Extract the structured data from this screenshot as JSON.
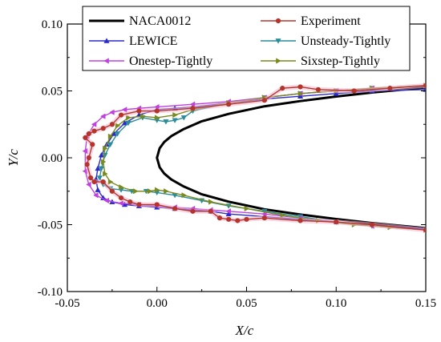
{
  "chart_data": {
    "type": "line",
    "xlabel": "X/c",
    "ylabel": "Y/c",
    "xlim": [
      -0.05,
      0.15
    ],
    "ylim": [
      -0.1,
      0.1
    ],
    "xticks": [
      "-0.05",
      "0.00",
      "0.05",
      "0.10",
      "0.15"
    ],
    "yticks": [
      "-0.10",
      "-0.05",
      "0.00",
      "0.05",
      "0.10"
    ],
    "grid": false,
    "legend_position": "top",
    "series": [
      {
        "name": "NACA0012",
        "color": "#000000",
        "marker": "none",
        "x": [
          0.15,
          0.12,
          0.1,
          0.08,
          0.06,
          0.04,
          0.025,
          0.015,
          0.008,
          0.004,
          0.0015,
          0.0,
          0.0015,
          0.004,
          0.008,
          0.015,
          0.025,
          0.04,
          0.06,
          0.08,
          0.1,
          0.12,
          0.15
        ],
        "y": [
          0.0526,
          0.0488,
          0.0458,
          0.0424,
          0.0385,
          0.0328,
          0.0273,
          0.0215,
          0.0162,
          0.0117,
          0.0071,
          0.0,
          -0.0071,
          -0.0117,
          -0.0162,
          -0.0215,
          -0.0273,
          -0.0328,
          -0.0385,
          -0.0424,
          -0.0458,
          -0.0488,
          -0.0526
        ]
      },
      {
        "name": "Experiment",
        "color": "#b5342b",
        "marker": "circle",
        "x": [
          0.15,
          0.13,
          0.11,
          0.09,
          0.08,
          0.07,
          0.06,
          0.04,
          0.02,
          0.0,
          -0.01,
          -0.02,
          -0.025,
          -0.03,
          -0.035,
          -0.038,
          -0.04,
          -0.036,
          -0.038,
          -0.039,
          -0.037,
          -0.035,
          -0.03,
          -0.025,
          -0.02,
          -0.015,
          -0.01,
          0.0,
          0.01,
          0.02,
          0.03,
          0.035,
          0.04,
          0.045,
          0.05,
          0.06,
          0.08,
          0.1,
          0.12,
          0.15
        ],
        "y": [
          0.054,
          0.052,
          0.05,
          0.051,
          0.053,
          0.052,
          0.043,
          0.04,
          0.037,
          0.035,
          0.035,
          0.032,
          0.025,
          0.022,
          0.02,
          0.018,
          0.015,
          0.01,
          0.0,
          -0.005,
          -0.015,
          -0.018,
          -0.018,
          -0.025,
          -0.03,
          -0.033,
          -0.035,
          -0.035,
          -0.038,
          -0.04,
          -0.04,
          -0.045,
          -0.046,
          -0.047,
          -0.046,
          -0.045,
          -0.047,
          -0.048,
          -0.05,
          -0.054
        ]
      },
      {
        "name": "LEWICE",
        "color": "#2b2bc8",
        "marker": "triangle-up",
        "x": [
          0.15,
          0.12,
          0.1,
          0.08,
          0.06,
          0.04,
          0.02,
          0.01,
          0.0,
          -0.01,
          -0.018,
          -0.024,
          -0.028,
          -0.031,
          -0.033,
          -0.034,
          -0.033,
          -0.03,
          -0.025,
          -0.018,
          -0.01,
          0.0,
          0.01,
          0.02,
          0.03,
          0.04,
          0.06,
          0.08,
          0.1,
          0.12,
          0.15
        ],
        "y": [
          0.051,
          0.05,
          0.048,
          0.046,
          0.044,
          0.041,
          0.038,
          0.037,
          0.036,
          0.032,
          0.026,
          0.018,
          0.01,
          0.002,
          -0.008,
          -0.016,
          -0.024,
          -0.03,
          -0.033,
          -0.035,
          -0.036,
          -0.037,
          -0.038,
          -0.039,
          -0.04,
          -0.042,
          -0.044,
          -0.046,
          -0.048,
          -0.05,
          -0.053
        ]
      },
      {
        "name": "Unsteady-Tightly",
        "color": "#2a8c9a",
        "marker": "triangle-down",
        "x": [
          0.15,
          0.12,
          0.1,
          0.08,
          0.06,
          0.04,
          0.02,
          0.015,
          0.01,
          0.005,
          0.0,
          -0.008,
          -0.016,
          -0.022,
          -0.026,
          -0.029,
          -0.031,
          -0.032,
          -0.03,
          -0.026,
          -0.02,
          -0.014,
          -0.006,
          0.0,
          0.01,
          0.025,
          0.04,
          0.06,
          0.08,
          0.1,
          0.12,
          0.15
        ],
        "y": [
          0.054,
          0.052,
          0.05,
          0.048,
          0.045,
          0.041,
          0.035,
          0.03,
          0.028,
          0.027,
          0.028,
          0.03,
          0.026,
          0.018,
          0.01,
          0.002,
          -0.008,
          -0.015,
          -0.02,
          -0.023,
          -0.024,
          -0.025,
          -0.025,
          -0.026,
          -0.028,
          -0.032,
          -0.036,
          -0.04,
          -0.044,
          -0.048,
          -0.051,
          -0.054
        ]
      },
      {
        "name": "Onestep-Tightly",
        "color": "#c040e0",
        "marker": "left-triangle",
        "x": [
          0.15,
          0.12,
          0.1,
          0.08,
          0.06,
          0.04,
          0.02,
          0.0,
          -0.01,
          -0.018,
          -0.025,
          -0.03,
          -0.035,
          -0.039,
          -0.04,
          -0.04,
          -0.038,
          -0.034,
          -0.028,
          -0.02,
          -0.01,
          0.0,
          0.01,
          0.02,
          0.03,
          0.04,
          0.06,
          0.08,
          0.1,
          0.12,
          0.15
        ],
        "y": [
          0.054,
          0.052,
          0.05,
          0.048,
          0.045,
          0.042,
          0.04,
          0.038,
          0.037,
          0.036,
          0.034,
          0.031,
          0.025,
          0.016,
          0.005,
          -0.01,
          -0.02,
          -0.028,
          -0.032,
          -0.034,
          -0.035,
          -0.036,
          -0.037,
          -0.038,
          -0.039,
          -0.04,
          -0.042,
          -0.045,
          -0.048,
          -0.051,
          -0.054
        ]
      },
      {
        "name": "Sixstep-Tightly",
        "color": "#7a8a1e",
        "marker": "right-triangle",
        "x": [
          0.15,
          0.12,
          0.1,
          0.08,
          0.06,
          0.04,
          0.02,
          0.01,
          0.0,
          -0.008,
          -0.016,
          -0.022,
          -0.026,
          -0.029,
          -0.03,
          -0.029,
          -0.026,
          -0.02,
          -0.012,
          -0.004,
          0.0,
          0.005,
          0.015,
          0.03,
          0.05,
          0.07,
          0.09,
          0.11,
          0.13,
          0.15
        ],
        "y": [
          0.054,
          0.052,
          0.05,
          0.048,
          0.045,
          0.041,
          0.036,
          0.032,
          0.03,
          0.031,
          0.03,
          0.024,
          0.016,
          0.007,
          -0.003,
          -0.012,
          -0.018,
          -0.022,
          -0.025,
          -0.025,
          -0.024,
          -0.025,
          -0.028,
          -0.033,
          -0.038,
          -0.043,
          -0.047,
          -0.05,
          -0.052,
          -0.054
        ]
      }
    ]
  }
}
